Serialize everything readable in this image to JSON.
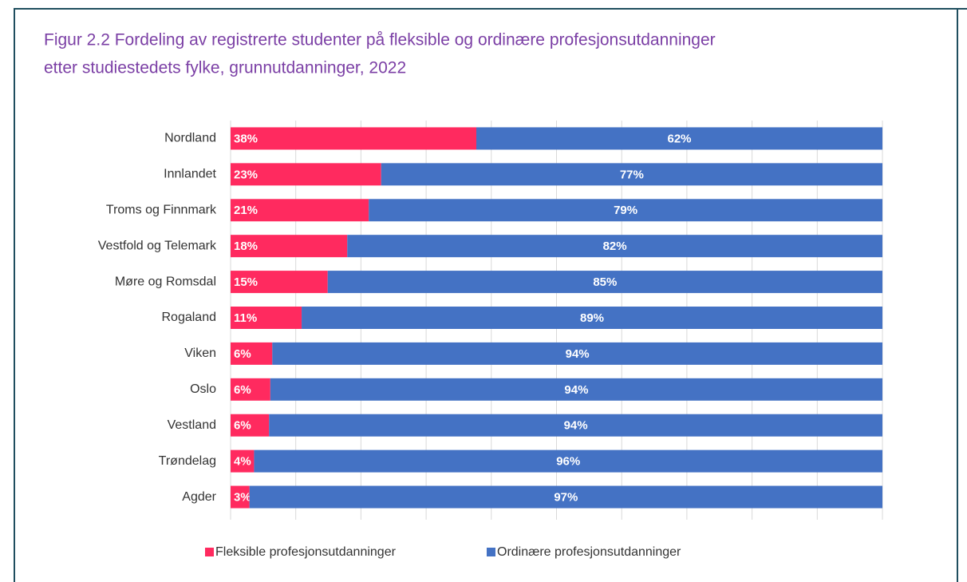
{
  "chart_data": {
    "type": "stacked-bar-horizontal",
    "title": [
      "Figur 2.2 Fordeling av registrerte studenter på fleksible og ordinære profesjonsutdanninger",
      "etter studiestedets fylke, grunnutdanninger, 2022"
    ],
    "categories": [
      "Nordland",
      "Innlandet",
      "Troms og Finnmark",
      "Vestfold og Telemark",
      "Møre og Romsdal",
      "Rogaland",
      "Viken",
      "Oslo",
      "Vestland",
      "Trøndelag",
      "Agder"
    ],
    "series": [
      {
        "name": "Fleksible profesjonsutdanninger",
        "color": "#ff2a5f",
        "values": [
          37.7,
          23.1,
          21.2,
          17.9,
          14.9,
          10.9,
          6.4,
          6.1,
          5.9,
          3.6,
          2.9
        ],
        "value_labels": [
          "38%",
          "23%",
          "21%",
          "18%",
          "15%",
          "11%",
          "6%",
          "6%",
          "6%",
          "4%",
          "3%"
        ]
      },
      {
        "name": "Ordinære profesjonsutdanninger",
        "color": "#4472c4",
        "values": [
          62.3,
          76.9,
          78.8,
          82.1,
          85.1,
          89.1,
          93.6,
          93.9,
          94.1,
          96.4,
          97.1
        ],
        "value_labels": [
          "62%",
          "77%",
          "79%",
          "82%",
          "85%",
          "89%",
          "94%",
          "94%",
          "94%",
          "96%",
          "97%"
        ]
      }
    ],
    "xlim": [
      0,
      100
    ],
    "xticks": [
      0,
      10,
      20,
      30,
      40,
      50,
      60,
      70,
      80,
      90,
      100
    ],
    "grid": true,
    "legend": "bottom"
  }
}
